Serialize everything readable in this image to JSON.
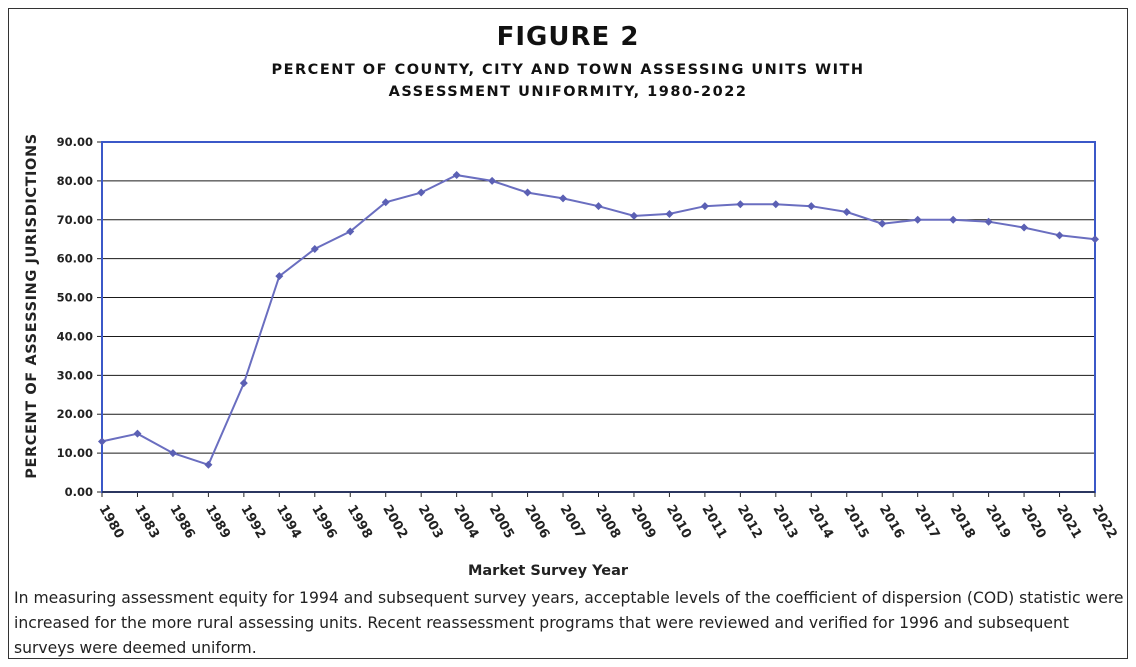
{
  "figure": {
    "title": "FIGURE 2",
    "subtitle_line1": "PERCENT OF COUNTY, CITY AND TOWN ASSESSING UNITS WITH",
    "subtitle_line2": "ASSESSMENT UNIFORMITY, 1980-2022"
  },
  "chart_data": {
    "type": "line",
    "xlabel": "Market Survey Year",
    "ylabel": "PERCENT OF ASSESSING JURISDICTIONS",
    "ylim": [
      0,
      90
    ],
    "ytick_labels": [
      "0.00",
      "10.00",
      "20.00",
      "30.00",
      "40.00",
      "50.00",
      "60.00",
      "70.00",
      "80.00",
      "90.00"
    ],
    "grid": true,
    "colors": {
      "line": "#6a6ec0",
      "marker": "#5b60b4",
      "plot_border": "#3b58c8"
    },
    "categories": [
      "1980",
      "1983",
      "1986",
      "1989",
      "1992",
      "1994",
      "1996",
      "1998",
      "2002",
      "2003",
      "2004",
      "2005",
      "2006",
      "2007",
      "2008",
      "2009",
      "2010",
      "2011",
      "2012",
      "2013",
      "2014",
      "2015",
      "2016",
      "2017",
      "2018",
      "2019",
      "2020",
      "2021",
      "2022"
    ],
    "values": [
      13.0,
      15.0,
      10.0,
      7.0,
      28.0,
      55.5,
      62.5,
      67.0,
      74.5,
      77.0,
      81.5,
      80.0,
      77.0,
      75.5,
      73.5,
      71.0,
      71.5,
      73.5,
      74.0,
      74.0,
      73.5,
      72.0,
      69.0,
      70.0,
      70.0,
      69.5,
      68.0,
      66.0,
      65.0
    ]
  },
  "caption": "In measuring assessment equity for 1994 and subsequent survey years, acceptable levels of the coefficient of dispersion (COD) statistic were increased for the more rural assessing units.  Recent reassessment programs that were reviewed and verified for 1996 and subsequent surveys were deemed uniform."
}
